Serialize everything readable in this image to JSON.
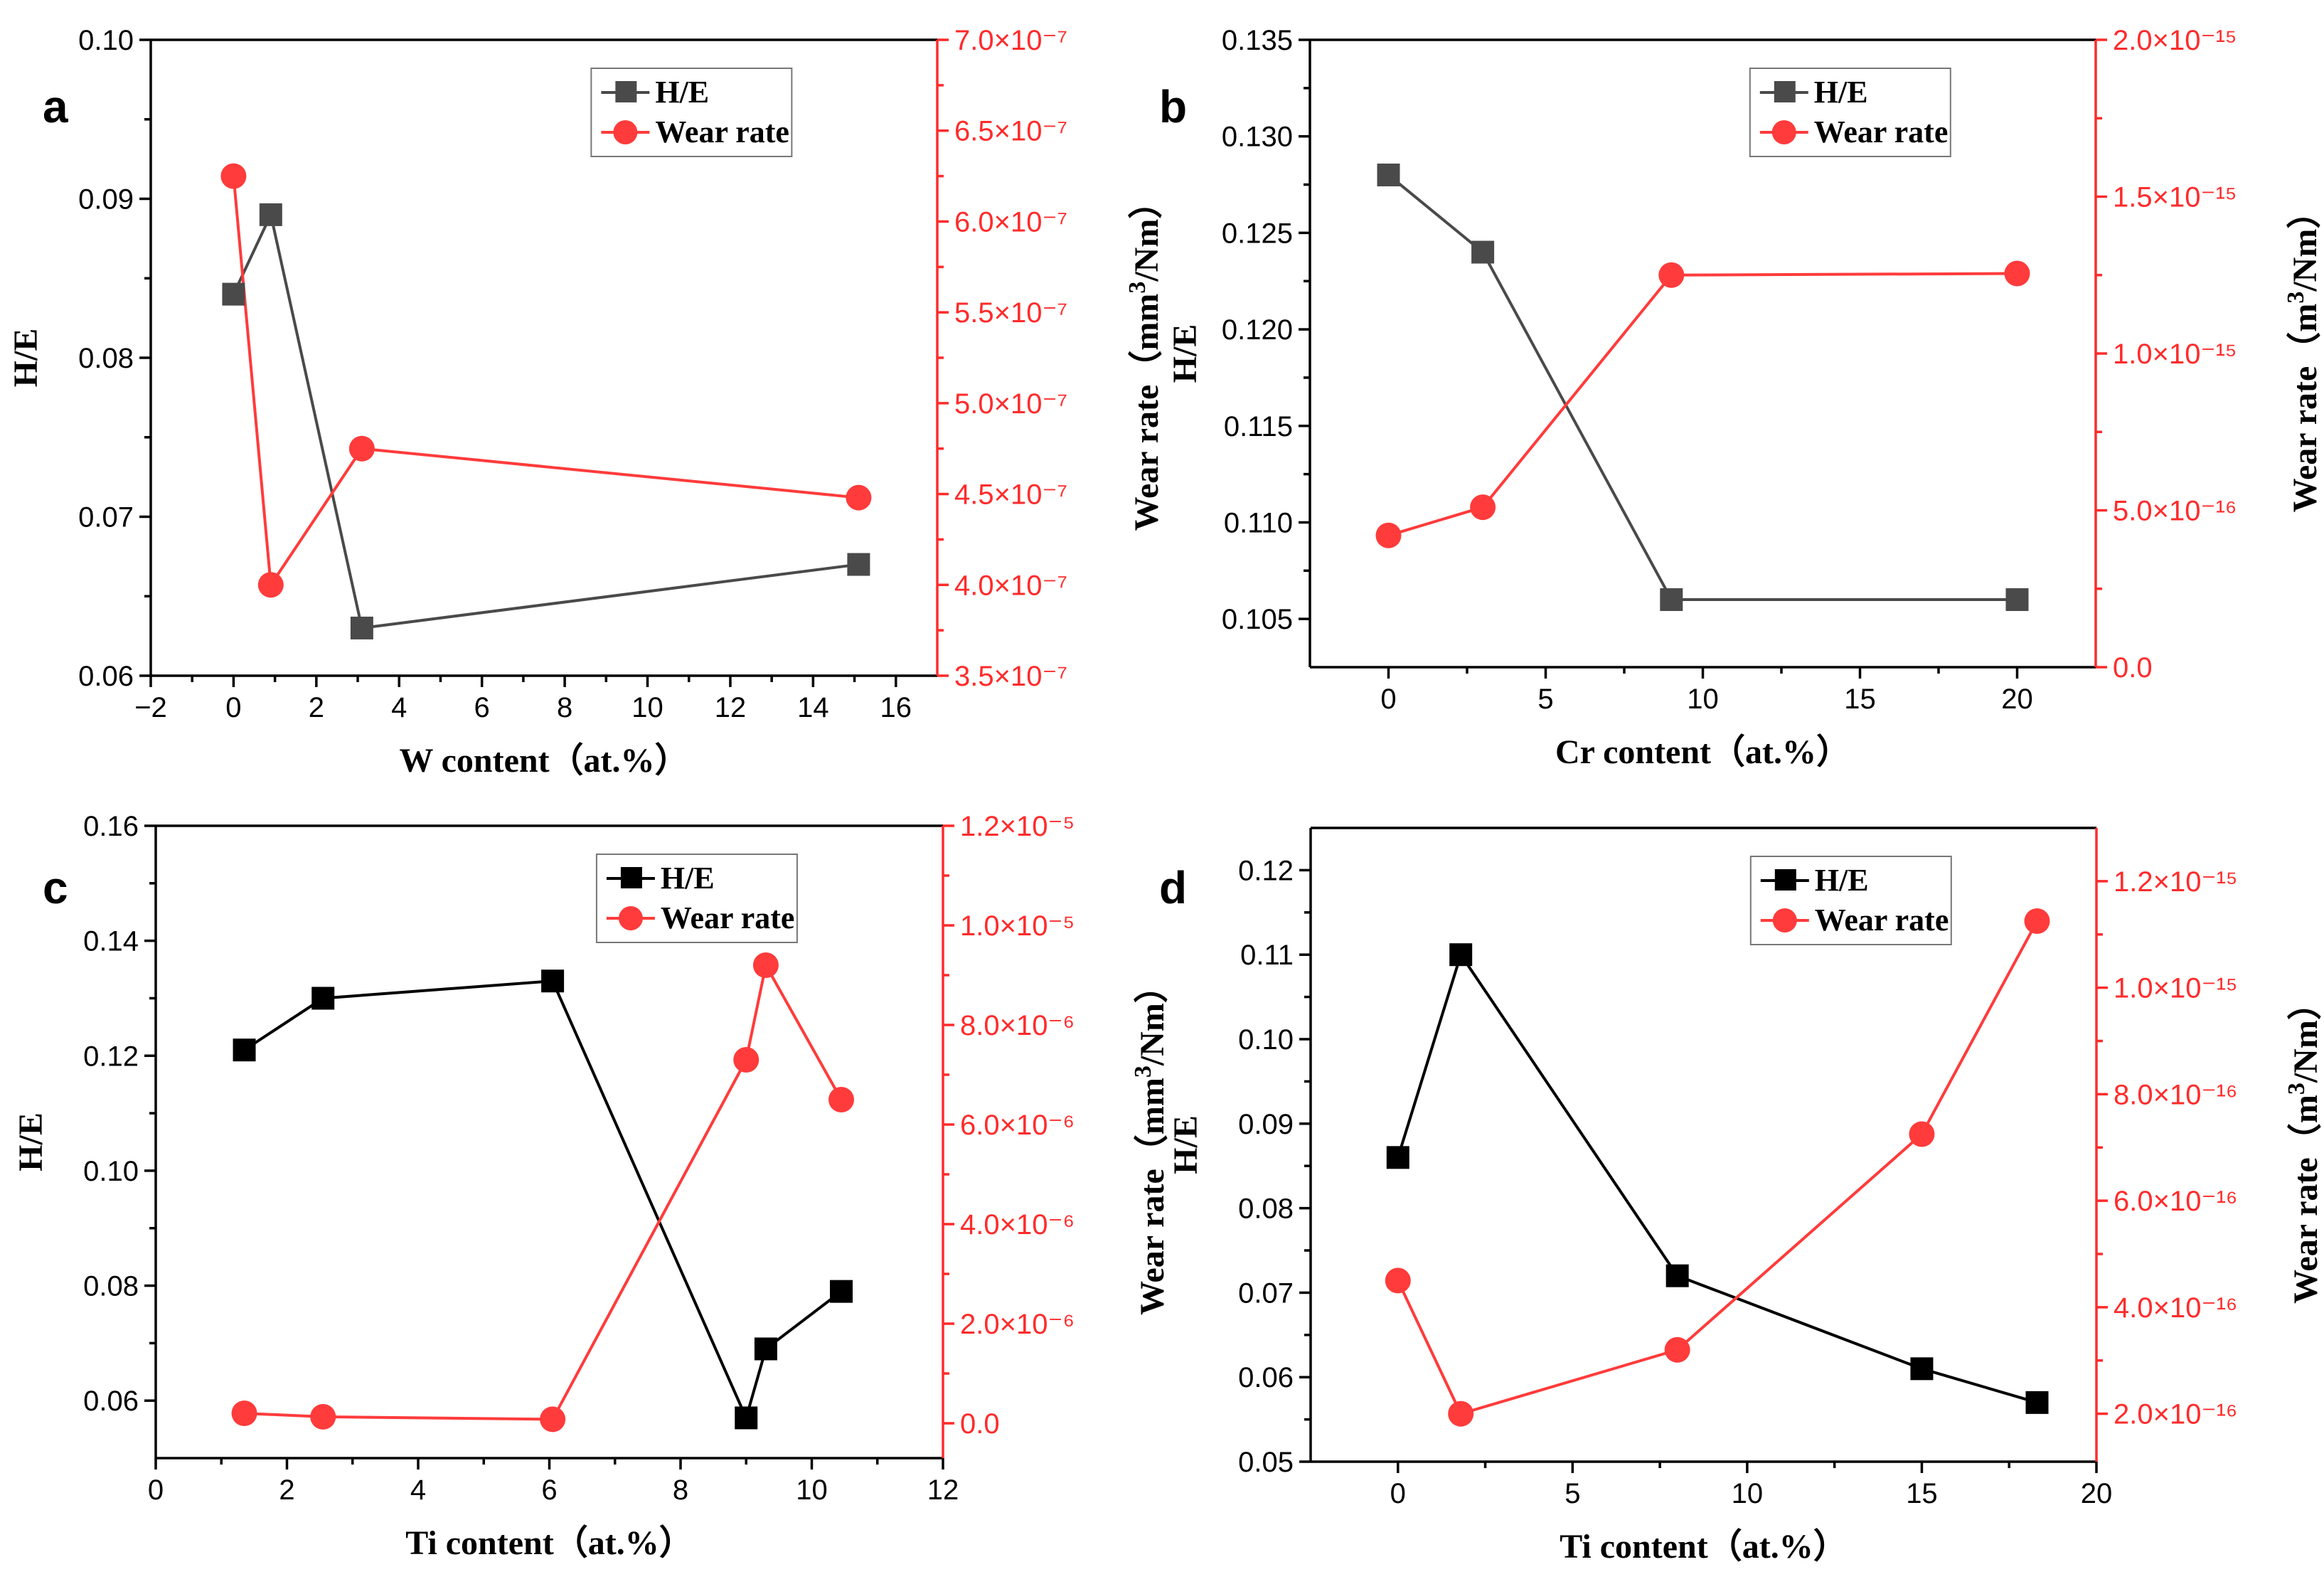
{
  "chart_data": [
    {
      "type": "line",
      "panel_label": "a",
      "xlabel": "W content（at.%）",
      "ylabel_left": "H/E",
      "ylabel_right_base": "Wear rate（mm",
      "ylabel_right_sup": "3",
      "ylabel_right_tail": "/Nm）",
      "xlim": [
        -2,
        17
      ],
      "xticks": [
        -2,
        0,
        2,
        4,
        6,
        8,
        10,
        12,
        14,
        16
      ],
      "xtick_labels": [
        "−2",
        "0",
        "2",
        "4",
        "6",
        "8",
        "10",
        "12",
        "14",
        "16"
      ],
      "ylim_left": [
        0.06,
        0.1
      ],
      "yticks_left": [
        0.06,
        0.07,
        0.08,
        0.09,
        0.1
      ],
      "ytick_labels_left": [
        "0.06",
        "0.07",
        "0.08",
        "0.09",
        "0.10"
      ],
      "ylim_right": [
        3.5,
        7.0
      ],
      "yticks_right": [
        3.5,
        4.0,
        4.5,
        5.0,
        5.5,
        6.0,
        6.5,
        7.0
      ],
      "ytick_labels_right": [
        "3.5×10⁻⁷",
        "4.0×10⁻⁷",
        "4.5×10⁻⁷",
        "5.0×10⁻⁷",
        "5.5×10⁻⁷",
        "6.0×10⁻⁷",
        "6.5×10⁻⁷",
        "7.0×10⁻⁷"
      ],
      "legend": {
        "placement": "top-right",
        "he_label": "H/E",
        "wear_label": "Wear rate"
      },
      "he_color": "#4a4a4a",
      "wear_color": "#ff3b3b",
      "series": [
        {
          "name": "H/E",
          "axis": "left",
          "x": [
            0,
            0.9,
            3.1,
            15.1
          ],
          "values": [
            0.084,
            0.089,
            0.063,
            0.067
          ]
        },
        {
          "name": "Wear rate",
          "axis": "right",
          "x": [
            0,
            0.9,
            3.1,
            15.1
          ],
          "values": [
            6.25,
            4.0,
            4.75,
            4.48
          ]
        }
      ]
    },
    {
      "type": "line",
      "panel_label": "b",
      "xlabel": "Cr content（at.%）",
      "ylabel_left": "H/E",
      "ylabel_right_base": "Wear rate（m",
      "ylabel_right_sup": "3",
      "ylabel_right_tail": "/Nm）",
      "xlim": [
        -2.5,
        22.5
      ],
      "xticks": [
        0,
        5,
        10,
        15,
        20
      ],
      "xtick_labels": [
        "0",
        "5",
        "10",
        "15",
        "20"
      ],
      "ylim_left": [
        0.1025,
        0.135
      ],
      "yticks_left": [
        0.105,
        0.11,
        0.115,
        0.12,
        0.125,
        0.13,
        0.135
      ],
      "ytick_labels_left": [
        "0.105",
        "0.110",
        "0.115",
        "0.120",
        "0.125",
        "0.130",
        "0.135"
      ],
      "ylim_right": [
        0,
        2.0
      ],
      "yticks_right": [
        0,
        0.5,
        1.0,
        1.5,
        2.0
      ],
      "ytick_labels_right": [
        "0.0",
        "5.0×10⁻¹⁶",
        "1.0×10⁻¹⁵",
        "1.5×10⁻¹⁵",
        "2.0×10⁻¹⁵"
      ],
      "legend": {
        "placement": "top-right",
        "he_label": "H/E",
        "wear_label": "Wear rate"
      },
      "he_color": "#4a4a4a",
      "wear_color": "#ff3b3b",
      "series": [
        {
          "name": "H/E",
          "axis": "left",
          "x": [
            0,
            3,
            9,
            20
          ],
          "values": [
            0.128,
            0.124,
            0.106,
            0.106
          ]
        },
        {
          "name": "Wear rate",
          "axis": "right",
          "x": [
            0,
            3,
            9,
            20
          ],
          "values": [
            0.42,
            0.51,
            1.25,
            1.255
          ]
        }
      ]
    },
    {
      "type": "line",
      "panel_label": "c",
      "xlabel": "Ti content（at.%）",
      "ylabel_left": "H/E",
      "ylabel_right_base": "Wear rate（mm",
      "ylabel_right_sup": "3",
      "ylabel_right_tail": "/Nm）",
      "xlim": [
        0,
        12
      ],
      "xticks": [
        0,
        2,
        4,
        6,
        8,
        10,
        12
      ],
      "xtick_labels": [
        "0",
        "2",
        "4",
        "6",
        "8",
        "10",
        "12"
      ],
      "ylim_left": [
        0.05,
        0.16
      ],
      "yticks_left": [
        0.06,
        0.08,
        0.1,
        0.12,
        0.14,
        0.16
      ],
      "ytick_labels_left": [
        "0.06",
        "0.08",
        "0.10",
        "0.12",
        "0.14",
        "0.16"
      ],
      "ylim_right": [
        -0.7,
        12.0
      ],
      "yticks_right": [
        0,
        2,
        4,
        6,
        8,
        10,
        12
      ],
      "ytick_labels_right": [
        "0.0",
        "2.0×10⁻⁶",
        "4.0×10⁻⁶",
        "6.0×10⁻⁶",
        "8.0×10⁻⁶",
        "1.0×10⁻⁵",
        "1.2×10⁻⁵"
      ],
      "legend": {
        "placement": "top-right",
        "he_label": "H/E",
        "wear_label": "Wear rate"
      },
      "he_color": "#000000",
      "wear_color": "#ff3b3b",
      "series": [
        {
          "name": "H/E",
          "axis": "left",
          "x": [
            1.35,
            2.55,
            6.05,
            9.0,
            9.3,
            10.45
          ],
          "values": [
            0.121,
            0.13,
            0.133,
            0.057,
            0.069,
            0.079
          ]
        },
        {
          "name": "Wear rate",
          "axis": "right",
          "x": [
            1.35,
            2.55,
            6.05,
            9.0,
            9.3,
            10.45
          ],
          "values": [
            0.2,
            0.13,
            0.08,
            7.3,
            9.2,
            6.5
          ]
        }
      ]
    },
    {
      "type": "line",
      "panel_label": "d",
      "xlabel": "Ti content（at.%）",
      "ylabel_left": "H/E",
      "ylabel_right_base": "Wear rate（m",
      "ylabel_right_sup": "3",
      "ylabel_right_tail": "/Nm）",
      "xlim": [
        -2.5,
        20
      ],
      "xticks": [
        0,
        5,
        10,
        15,
        20
      ],
      "xtick_labels": [
        "0",
        "5",
        "10",
        "15",
        "20"
      ],
      "ylim_left": [
        0.05,
        0.125
      ],
      "yticks_left": [
        0.05,
        0.06,
        0.07,
        0.08,
        0.09,
        0.1,
        0.11,
        0.12
      ],
      "ytick_labels_left": [
        "0.05",
        "0.06",
        "0.07",
        "0.08",
        "0.09",
        "0.10",
        "0.11",
        "0.12"
      ],
      "ylim_right": [
        1.1,
        13.0
      ],
      "yticks_right": [
        2,
        4,
        6,
        8,
        10,
        12
      ],
      "ytick_labels_right": [
        "2.0×10⁻¹⁶",
        "4.0×10⁻¹⁶",
        "6.0×10⁻¹⁶",
        "8.0×10⁻¹⁶",
        "1.0×10⁻¹⁵",
        "1.2×10⁻¹⁵"
      ],
      "legend": {
        "placement": "top-right",
        "he_label": "H/E",
        "wear_label": "Wear rate"
      },
      "he_color": "#000000",
      "wear_color": "#ff3b3b",
      "series": [
        {
          "name": "H/E",
          "axis": "left",
          "x": [
            0,
            1.8,
            8,
            15,
            18.3
          ],
          "values": [
            0.086,
            0.11,
            0.072,
            0.061,
            0.057
          ]
        },
        {
          "name": "Wear rate",
          "axis": "right",
          "x": [
            0,
            1.8,
            8,
            15,
            18.3
          ],
          "values": [
            4.5,
            2.0,
            3.2,
            7.25,
            11.25
          ]
        }
      ]
    }
  ]
}
